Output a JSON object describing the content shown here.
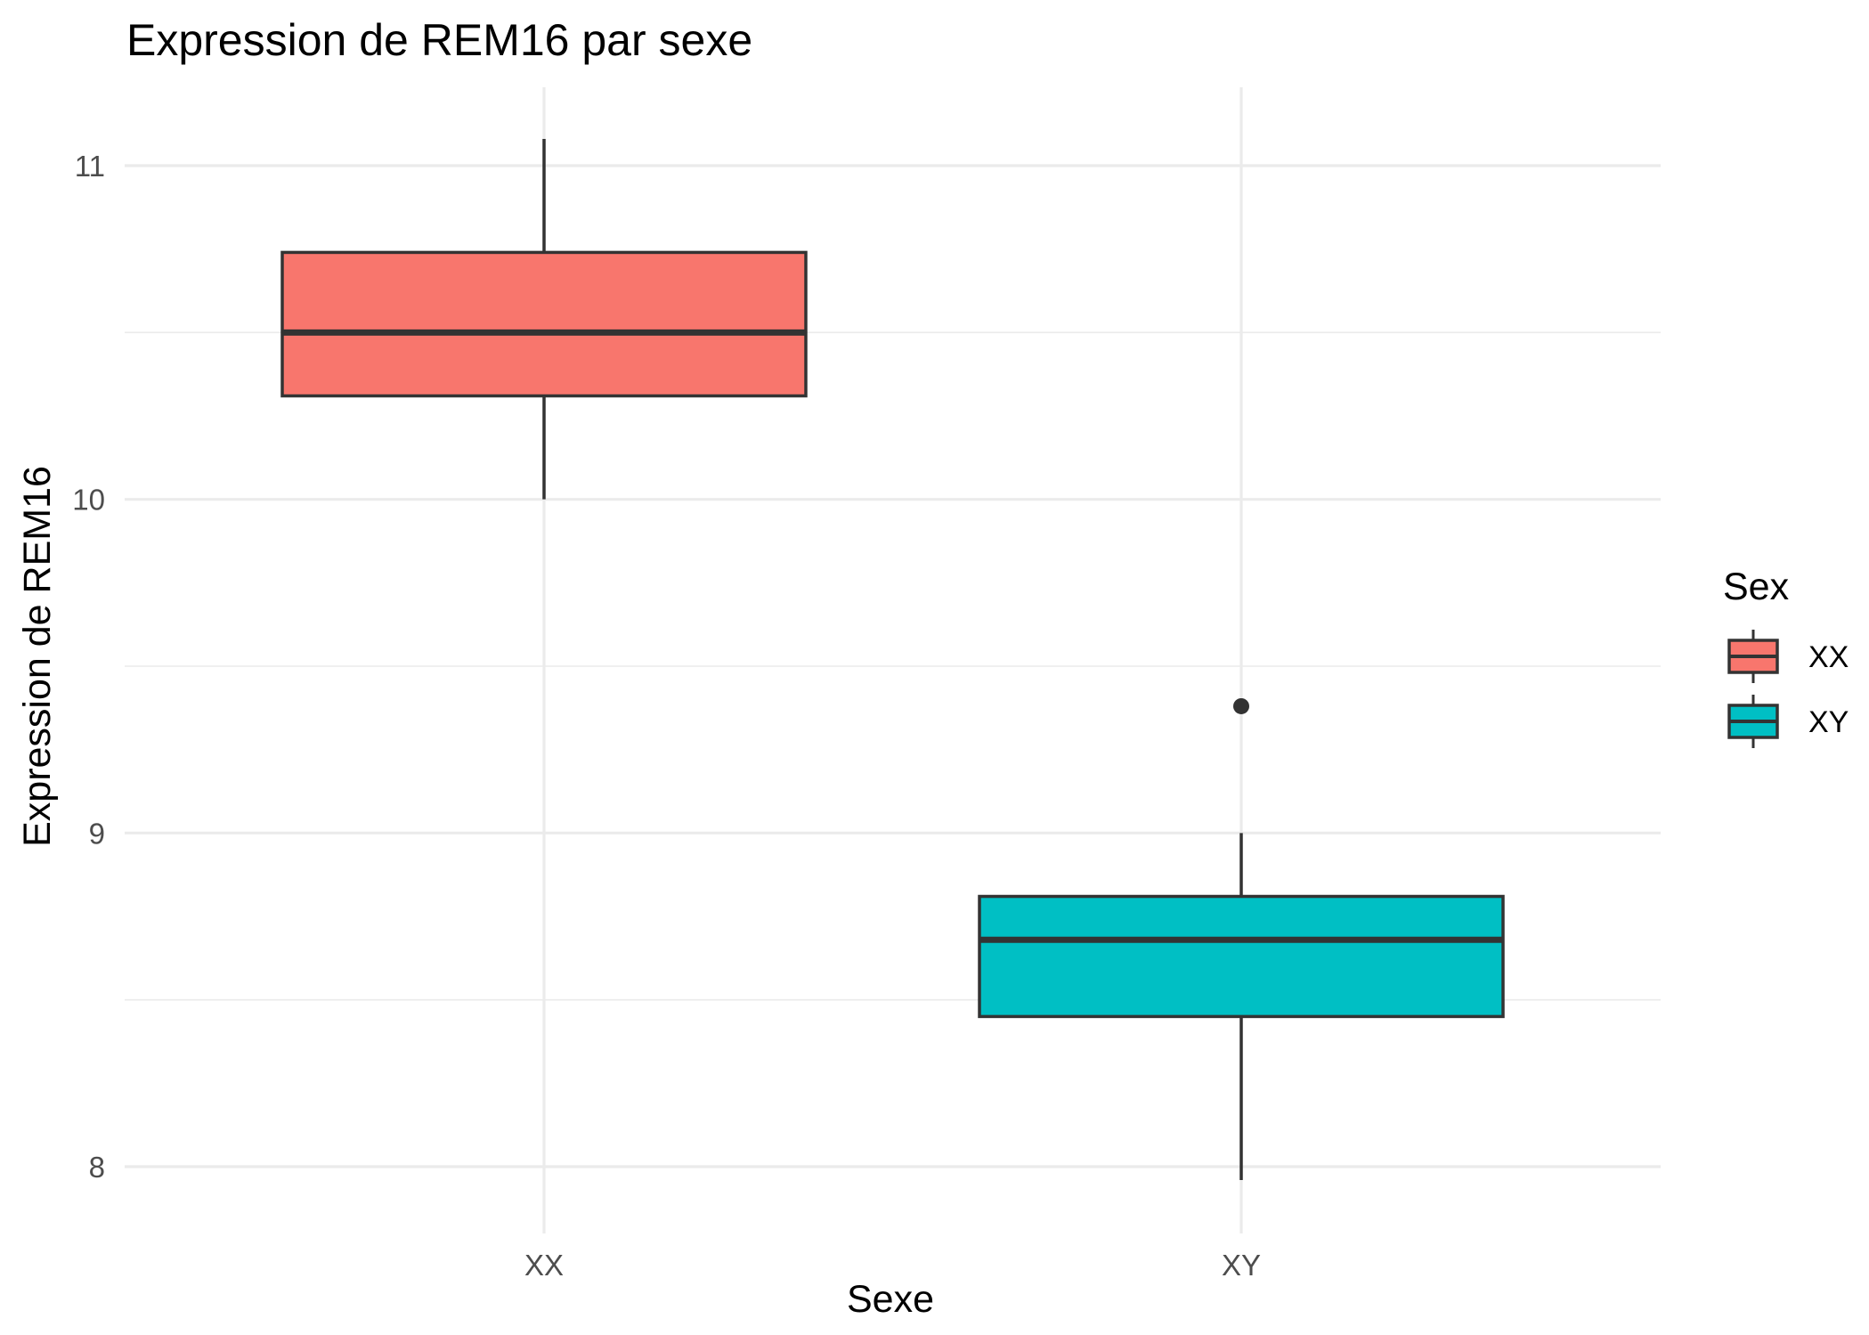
{
  "chart_data": {
    "type": "box",
    "title": "Expression de REM16 par sexe",
    "xlabel": "Sexe",
    "ylabel": "Expression de REM16",
    "categories": [
      "XX",
      "XY"
    ],
    "ylim": [
      7.75,
      11.25
    ],
    "yticks": [
      8,
      9,
      10,
      11
    ],
    "grid": true,
    "legend": {
      "title": "Sex",
      "position": "right",
      "items": [
        {
          "label": "XX",
          "color": "#F8766D"
        },
        {
          "label": "XY",
          "color": "#00BFC4"
        }
      ]
    },
    "boxes": [
      {
        "category": "XX",
        "color": "#F8766D",
        "min": 10.0,
        "q1": 10.31,
        "median": 10.5,
        "q3": 10.74,
        "max": 11.08,
        "outliers": []
      },
      {
        "category": "XY",
        "color": "#00BFC4",
        "min": 7.96,
        "q1": 8.45,
        "median": 8.68,
        "q3": 8.81,
        "max": 9.0,
        "outliers": [
          9.38
        ]
      }
    ]
  }
}
